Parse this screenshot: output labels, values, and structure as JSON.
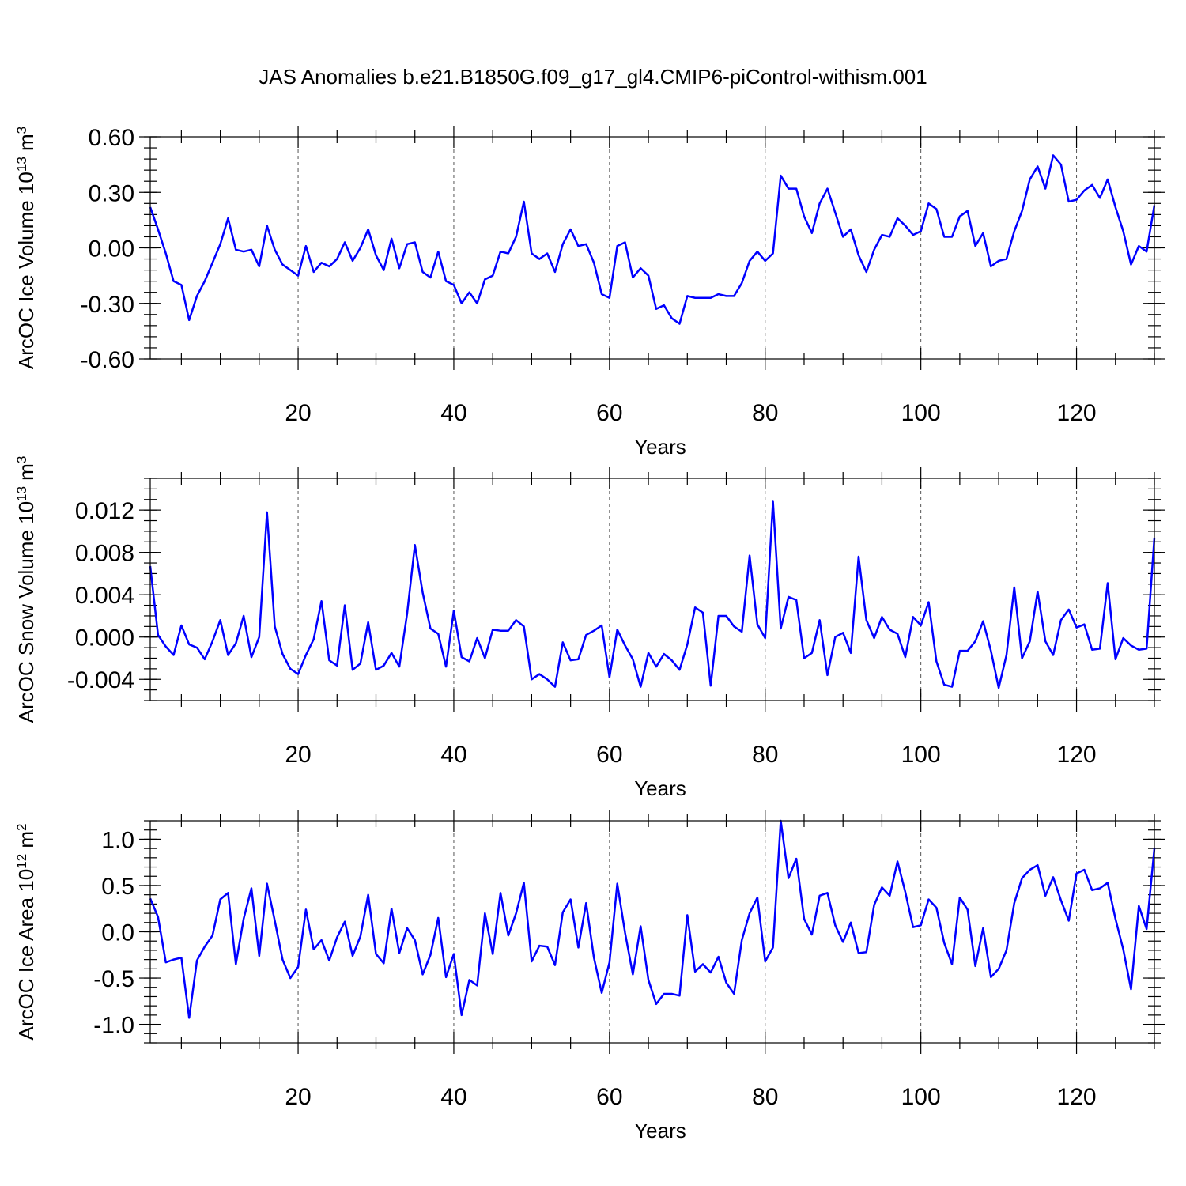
{
  "figure": {
    "title": "JAS Anomalies b.e21.B1850G.f09_g17_gl4.CMIP6-piControl-withism.001"
  },
  "colors": {
    "line": "#0000ff",
    "frame": "#000000",
    "grid": "#555555"
  },
  "chart_data": [
    {
      "type": "line",
      "title": "JAS Anomalies b.e21.B1850G.f09_g17_gl4.CMIP6-piControl-withism.001",
      "xlabel": "Years",
      "ylabel": "ArcOC Ice Volume 10",
      "ylabel_exp": "13",
      "ylabel_unit": " m",
      "ylabel_unit_exp": "3",
      "xlim": [
        1,
        130
      ],
      "ylim": [
        -0.6,
        0.6
      ],
      "x_ticks": [
        20,
        40,
        60,
        80,
        100,
        120
      ],
      "x_tick_labels": [
        "20",
        "40",
        "60",
        "80",
        "100",
        "120"
      ],
      "y_ticks": [
        -0.6,
        -0.3,
        0.0,
        0.3,
        0.6
      ],
      "y_tick_labels": [
        "-0.60",
        "-0.30",
        "0.00",
        "0.30",
        "0.60"
      ],
      "y_minor_step": 0.06,
      "grid_x": true,
      "series": [
        {
          "name": "ArcOC Ice Volume",
          "x_start": 1,
          "values": [
            0.22,
            0.1,
            -0.03,
            -0.18,
            -0.2,
            -0.39,
            -0.26,
            -0.18,
            -0.08,
            0.02,
            0.16,
            -0.01,
            -0.02,
            -0.01,
            -0.1,
            0.12,
            -0.01,
            -0.09,
            -0.12,
            -0.15,
            0.01,
            -0.13,
            -0.08,
            -0.1,
            -0.06,
            0.03,
            -0.07,
            0.0,
            0.1,
            -0.04,
            -0.12,
            0.05,
            -0.11,
            0.02,
            0.03,
            -0.13,
            -0.16,
            -0.02,
            -0.18,
            -0.2,
            -0.3,
            -0.24,
            -0.3,
            -0.17,
            -0.15,
            -0.02,
            -0.03,
            0.06,
            0.25,
            -0.03,
            -0.06,
            -0.03,
            -0.13,
            0.02,
            0.1,
            0.01,
            0.02,
            -0.08,
            -0.25,
            -0.27,
            0.01,
            0.03,
            -0.16,
            -0.11,
            -0.15,
            -0.33,
            -0.31,
            -0.38,
            -0.41,
            -0.26,
            -0.27,
            -0.27,
            -0.27,
            -0.25,
            -0.26,
            -0.26,
            -0.19,
            -0.07,
            -0.02,
            -0.07,
            -0.03,
            0.39,
            0.32,
            0.32,
            0.17,
            0.08,
            0.24,
            0.32,
            0.19,
            0.06,
            0.1,
            -0.04,
            -0.13,
            -0.01,
            0.07,
            0.06,
            0.16,
            0.12,
            0.07,
            0.09,
            0.24,
            0.21,
            0.06,
            0.06,
            0.17,
            0.2,
            0.01,
            0.08,
            -0.1,
            -0.07,
            -0.06,
            0.09,
            0.2,
            0.37,
            0.44,
            0.32,
            0.5,
            0.45,
            0.25,
            0.26,
            0.31,
            0.34,
            0.27,
            0.37,
            0.22,
            0.09,
            -0.09,
            0.01,
            -0.02,
            0.23
          ]
        }
      ]
    },
    {
      "type": "line",
      "xlabel": "Years",
      "ylabel": "ArcOC Snow Volume 10",
      "ylabel_exp": "13",
      "ylabel_unit": " m",
      "ylabel_unit_exp": "3",
      "xlim": [
        1,
        130
      ],
      "ylim": [
        -0.006,
        0.015
      ],
      "x_ticks": [
        20,
        40,
        60,
        80,
        100,
        120
      ],
      "x_tick_labels": [
        "20",
        "40",
        "60",
        "80",
        "100",
        "120"
      ],
      "y_ticks": [
        -0.004,
        0.0,
        0.004,
        0.008,
        0.012
      ],
      "y_tick_labels": [
        "-0.004",
        "0.000",
        "0.004",
        "0.008",
        "0.012"
      ],
      "y_minor_step": 0.001,
      "grid_x": true,
      "series": [
        {
          "name": "ArcOC Snow Volume",
          "x_start": 1,
          "values": [
            0.0067,
            0.0002,
            -0.0009,
            -0.0017,
            0.0011,
            -0.0007,
            -0.001,
            -0.0021,
            -0.0004,
            0.0016,
            -0.0017,
            -0.0006,
            0.002,
            -0.0019,
            0.0,
            0.0118,
            0.001,
            -0.0016,
            -0.003,
            -0.0035,
            -0.0017,
            -0.0002,
            0.0034,
            -0.0022,
            -0.0027,
            0.003,
            -0.0031,
            -0.0025,
            0.0014,
            -0.0031,
            -0.0027,
            -0.0015,
            -0.0028,
            0.0022,
            0.0087,
            0.0042,
            0.0008,
            0.0003,
            -0.0028,
            0.0025,
            -0.0019,
            -0.0023,
            -0.0001,
            -0.002,
            0.0007,
            0.0006,
            0.0006,
            0.0016,
            0.001,
            -0.004,
            -0.0035,
            -0.004,
            -0.0047,
            -0.0005,
            -0.0022,
            -0.0021,
            0.0002,
            0.0006,
            0.0011,
            -0.0038,
            0.0007,
            -0.0008,
            -0.0021,
            -0.0047,
            -0.0015,
            -0.0028,
            -0.0016,
            -0.0022,
            -0.0031,
            -0.0007,
            0.0028,
            0.0023,
            -0.0046,
            0.002,
            0.002,
            0.001,
            0.0005,
            0.0077,
            0.0012,
            -0.0001,
            0.0128,
            0.0008,
            0.0038,
            0.0035,
            -0.002,
            -0.0015,
            0.0016,
            -0.0036,
            0.0,
            0.0004,
            -0.0015,
            0.0076,
            0.0016,
            -0.0001,
            0.0019,
            0.0007,
            0.0003,
            -0.0019,
            0.0019,
            0.0011,
            0.0033,
            -0.0023,
            -0.0045,
            -0.0047,
            -0.0013,
            -0.0013,
            -0.0004,
            0.0015,
            -0.0013,
            -0.0048,
            -0.0017,
            0.0047,
            -0.002,
            -0.0004,
            0.0043,
            -0.0004,
            -0.0017,
            0.0016,
            0.0026,
            0.0009,
            0.0012,
            -0.0012,
            -0.0011,
            0.0051,
            -0.0021,
            -0.0001,
            -0.0008,
            -0.0012,
            -0.0011,
            0.0094
          ]
        }
      ]
    },
    {
      "type": "line",
      "xlabel": "Years",
      "ylabel": "ArcOC Ice Area 10",
      "ylabel_exp": "12",
      "ylabel_unit": " m",
      "ylabel_unit_exp": "2",
      "xlim": [
        1,
        130
      ],
      "ylim": [
        -1.2,
        1.2
      ],
      "x_ticks": [
        20,
        40,
        60,
        80,
        100,
        120
      ],
      "x_tick_labels": [
        "20",
        "40",
        "60",
        "80",
        "100",
        "120"
      ],
      "y_ticks": [
        -1.0,
        -0.5,
        0.0,
        0.5,
        1.0
      ],
      "y_tick_labels": [
        "-1.0",
        "-0.5",
        "0.0",
        "0.5",
        "1.0"
      ],
      "y_minor_step": 0.1,
      "grid_x": true,
      "series": [
        {
          "name": "ArcOC Ice Area",
          "x_start": 1,
          "values": [
            0.36,
            0.16,
            -0.33,
            -0.3,
            -0.28,
            -0.93,
            -0.31,
            -0.16,
            -0.04,
            0.35,
            0.42,
            -0.35,
            0.14,
            0.47,
            -0.26,
            0.52,
            0.12,
            -0.3,
            -0.5,
            -0.38,
            0.24,
            -0.19,
            -0.09,
            -0.31,
            -0.06,
            0.11,
            -0.26,
            -0.05,
            0.4,
            -0.24,
            -0.34,
            0.25,
            -0.23,
            0.04,
            -0.09,
            -0.46,
            -0.25,
            0.15,
            -0.49,
            -0.24,
            -0.9,
            -0.52,
            -0.58,
            0.2,
            -0.24,
            0.42,
            -0.04,
            0.2,
            0.53,
            -0.32,
            -0.15,
            -0.16,
            -0.36,
            0.21,
            0.35,
            -0.17,
            0.31,
            -0.28,
            -0.66,
            -0.33,
            0.52,
            -0.01,
            -0.46,
            0.06,
            -0.52,
            -0.78,
            -0.67,
            -0.67,
            -0.69,
            0.18,
            -0.43,
            -0.35,
            -0.44,
            -0.27,
            -0.55,
            -0.67,
            -0.09,
            0.2,
            0.37,
            -0.32,
            -0.17,
            1.2,
            0.58,
            0.79,
            0.14,
            -0.03,
            0.39,
            0.42,
            0.07,
            -0.11,
            0.1,
            -0.23,
            -0.22,
            0.29,
            0.48,
            0.39,
            0.76,
            0.43,
            0.05,
            0.07,
            0.35,
            0.26,
            -0.12,
            -0.35,
            0.37,
            0.24,
            -0.37,
            0.04,
            -0.49,
            -0.4,
            -0.2,
            0.31,
            0.58,
            0.67,
            0.72,
            0.39,
            0.59,
            0.34,
            0.12,
            0.63,
            0.67,
            0.45,
            0.47,
            0.53,
            0.14,
            -0.19,
            -0.62,
            0.28,
            0.03,
            0.9
          ]
        }
      ]
    }
  ]
}
